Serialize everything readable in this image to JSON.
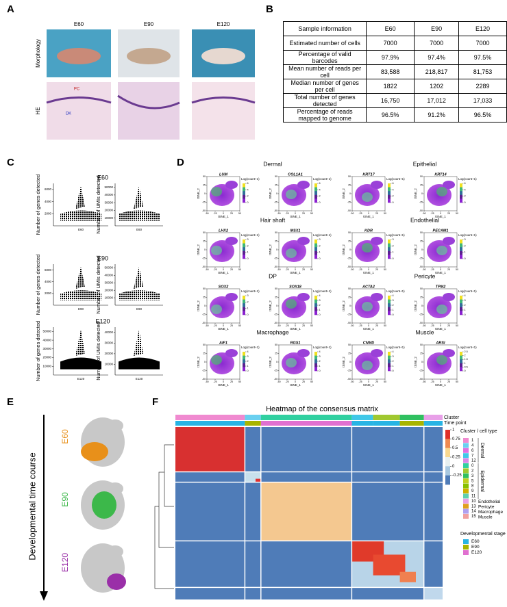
{
  "panel_a": {
    "label": "A",
    "columns": [
      "E60",
      "E90",
      "E120"
    ],
    "rows": [
      "Morphology",
      "HE"
    ],
    "annotations": [
      "PC",
      "DK"
    ]
  },
  "panel_b": {
    "label": "B",
    "table": {
      "header": [
        "Sample information",
        "E60",
        "E90",
        "E120"
      ],
      "rows": [
        [
          "Estimated number of cells",
          "7000",
          "7000",
          "7000"
        ],
        [
          "Percentage of valid barcodes",
          "97.9%",
          "97.4%",
          "97.5%"
        ],
        [
          "Mean number of reads per cell",
          "83,588",
          "218,817",
          "81,753"
        ],
        [
          "Median number of genes per cell",
          "1822",
          "1202",
          "2289"
        ],
        [
          "Total number of genes detected",
          "16,750",
          "17,012",
          "17,033"
        ],
        [
          "Percentage of reads mapped to genome",
          "96.5%",
          "91.2%",
          "96.5%"
        ]
      ]
    }
  },
  "panel_c": {
    "label": "C",
    "y_labels": [
      "Number of genes detected",
      "Number of UMIs detected"
    ],
    "groups": [
      {
        "title": "E60",
        "gene_ticks": [
          2000,
          4000,
          6000
        ],
        "gene_lim": [
          0,
          7000
        ],
        "umi_ticks": [
          10000,
          20000,
          30000,
          40000,
          50000
        ],
        "umi_lim": [
          0,
          55000
        ]
      },
      {
        "title": "E90",
        "gene_ticks": [
          2000,
          4000,
          6000
        ],
        "gene_lim": [
          0,
          7000
        ],
        "umi_ticks": [
          10000,
          20000,
          30000,
          40000,
          50000
        ],
        "umi_lim": [
          0,
          55000
        ]
      },
      {
        "title": "E120",
        "gene_ticks": [
          10000,
          20000,
          30000,
          40000,
          50000
        ],
        "gene_lim": [
          0,
          55000
        ],
        "umi_ticks": [
          10000,
          20000,
          30000,
          40000
        ],
        "umi_lim": [
          0,
          45000
        ]
      }
    ]
  },
  "panel_d": {
    "label": "D",
    "sections": [
      "Dermal",
      "Epithelial",
      "Hair shaft",
      "Endothelial",
      "DP",
      "Pericyte",
      "Macrophage",
      "Muscle"
    ],
    "x_label": "tSNE_1",
    "y_label": "tSNE_2",
    "axis_ticks": [
      -50,
      -25,
      0,
      25,
      50
    ],
    "legend_title": "Log(count+1)",
    "genes": [
      {
        "name": "LUM",
        "scale": [
          0,
          2,
          4,
          6
        ]
      },
      {
        "name": "COL1A1",
        "scale": [
          0,
          2,
          4,
          6
        ]
      },
      {
        "name": "KRT17",
        "scale": [
          0,
          2,
          4,
          6
        ]
      },
      {
        "name": "KRT14",
        "scale": [
          0,
          2,
          4,
          6
        ]
      },
      {
        "name": "LHX2",
        "scale": [
          0,
          1,
          2,
          3
        ]
      },
      {
        "name": "MSX1",
        "scale": [
          0,
          1,
          2,
          3
        ]
      },
      {
        "name": "KDR",
        "scale": [
          0,
          1,
          2,
          3
        ]
      },
      {
        "name": "PECAM1",
        "scale": [
          0,
          1,
          2,
          3
        ]
      },
      {
        "name": "SOX2",
        "scale": [
          0,
          1,
          2,
          3
        ]
      },
      {
        "name": "SOX18",
        "scale": [
          0,
          1,
          2,
          3,
          4
        ]
      },
      {
        "name": "ACTA2",
        "scale": [
          0,
          1,
          2,
          3,
          4
        ]
      },
      {
        "name": "TPM2",
        "scale": [
          0,
          1,
          2,
          3,
          4
        ]
      },
      {
        "name": "AIF1",
        "scale": [
          0,
          1,
          2,
          3,
          4
        ]
      },
      {
        "name": "RGS1",
        "scale": [
          0,
          1,
          2,
          3,
          4
        ]
      },
      {
        "name": "CNMD",
        "scale": [
          0,
          1,
          2,
          3,
          4
        ]
      },
      {
        "name": "ARSI",
        "scale": [
          0,
          0.5,
          1,
          1.5,
          2,
          2.5
        ]
      }
    ]
  },
  "panel_e": {
    "label": "E",
    "axis_title": "Developmental time course",
    "stages": [
      {
        "name": "E60",
        "color": "#e8901a"
      },
      {
        "name": "E90",
        "color": "#3cb84a"
      },
      {
        "name": "E120",
        "color": "#9a2fa8"
      }
    ]
  },
  "panel_f": {
    "label": "F",
    "title": "Heatmap of the consensus matrix",
    "bar_labels": [
      "Cluster",
      "Time point"
    ],
    "colorbar_ticks": [
      1,
      0.75,
      0.5,
      0.25,
      0,
      -0.25
    ],
    "colorbar_lim": [
      -0.5,
      1
    ],
    "legend_title": "Cluster / cell type",
    "clusters": [
      {
        "name": "1",
        "color": "#f08ad0"
      },
      {
        "name": "4",
        "color": "#6ad0f0"
      },
      {
        "name": "6",
        "color": "#e070e0"
      },
      {
        "name": "7",
        "color": "#40c8e8"
      },
      {
        "name": "12",
        "color": "#d888e8"
      },
      {
        "name": "0",
        "color": "#30d0a0"
      },
      {
        "name": "2",
        "color": "#a0c830"
      },
      {
        "name": "3",
        "color": "#30c060"
      },
      {
        "name": "5",
        "color": "#c0d020"
      },
      {
        "name": "8",
        "color": "#88c000"
      },
      {
        "name": "9",
        "color": "#d0b000"
      },
      {
        "name": "11",
        "color": "#60d0b0"
      },
      {
        "name": "10",
        "color": "#e8a0e8"
      },
      {
        "name": "13",
        "color": "#e0a020"
      },
      {
        "name": "14",
        "color": "#b0a0f0"
      },
      {
        "name": "15",
        "color": "#f0a0a0"
      }
    ],
    "groups": [
      "Dermal",
      "Epidermal",
      "Endothelial",
      "Pericyte",
      "Macrophage",
      "Muscle"
    ],
    "stage_title": "Developmental stage",
    "stages": [
      {
        "name": "E60",
        "color": "#28b4e4"
      },
      {
        "name": "E90",
        "color": "#a8b400"
      },
      {
        "name": "E120",
        "color": "#e070d0"
      }
    ]
  }
}
